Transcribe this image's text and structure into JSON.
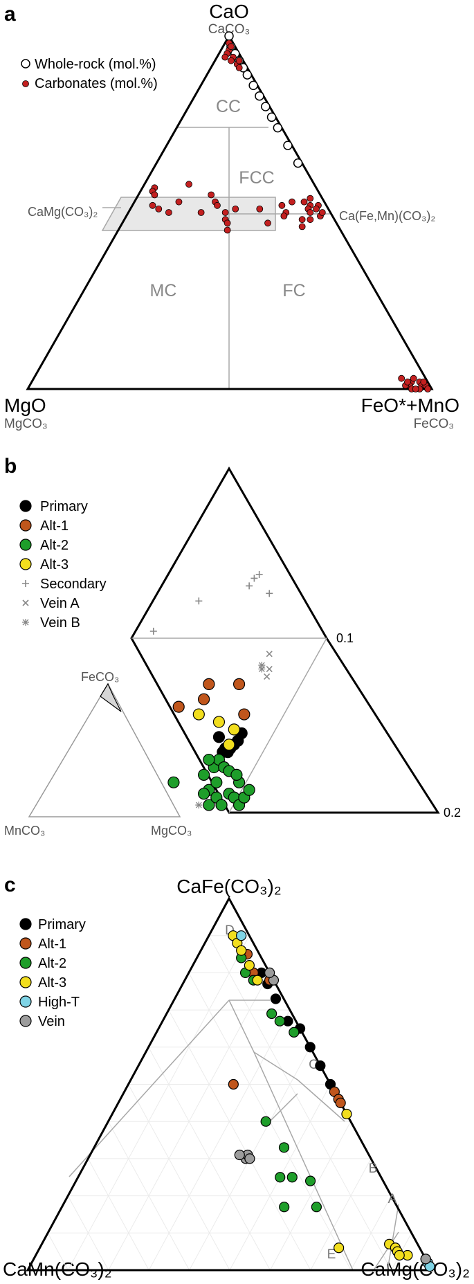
{
  "panel_a": {
    "label": "a",
    "apex_top": "CaO",
    "apex_top_sub": "CaCO₃",
    "apex_left": "MgO",
    "apex_left_sub": "MgCO₃",
    "apex_right": "FeO*+MnO",
    "apex_right_sub": "FeCO₃",
    "legend": [
      "Whole-rock (mol.%)",
      "Carbonates (mol.%)"
    ],
    "fields": [
      "CC",
      "FCC",
      "MC",
      "FC"
    ],
    "mid_left": "CaMg(CO₃)₂",
    "mid_right": "Ca(Fe,Mn)(CO₃)₂"
  },
  "panel_b": {
    "label": "b",
    "legend": [
      "Primary",
      "Alt-1",
      "Alt-2",
      "Alt-3",
      "Secondary",
      "Vein A",
      "Vein B"
    ],
    "tick_01": "0.1",
    "tick_02": "0.2",
    "inset_top": "FeCO₃",
    "inset_left": "MnCO₃",
    "inset_right": "MgCO₃"
  },
  "panel_c": {
    "label": "c",
    "apex_top": "CaFe(CO₃)₂",
    "apex_left": "CaMn(CO₃)₂",
    "apex_right": "CaMg(CO₃)₂",
    "legend": [
      "Primary",
      "Alt-1",
      "Alt-2",
      "Alt-3",
      "High-T",
      "Vein"
    ],
    "zones": [
      "D",
      "C",
      "B",
      "A",
      "E"
    ]
  },
  "colors": {
    "primary": "#000000",
    "alt1": "#c0561c",
    "alt2": "#1e9e2a",
    "alt3": "#f2de1e",
    "hight": "#7fd4e6",
    "vein": "#9c9c9c",
    "carbonate": "#c32020",
    "secondary": "#888888"
  },
  "chart_data": [
    {
      "type": "scatter",
      "title": "",
      "ternary_apices": [
        "CaO",
        "MgO",
        "FeO*+MnO"
      ],
      "series": [
        {
          "name": "Whole-rock (mol.%)",
          "points": [
            [
              100,
              0,
              0
            ],
            [
              97,
              1,
              2
            ],
            [
              95,
              1,
              4
            ],
            [
              93,
              1,
              6
            ],
            [
              91,
              1,
              8
            ],
            [
              89,
              1,
              10
            ],
            [
              86,
              1,
              13
            ],
            [
              83,
              1,
              16
            ],
            [
              80,
              1,
              19
            ],
            [
              77,
              1,
              22
            ],
            [
              74,
              1,
              25
            ],
            [
              69,
              1,
              30
            ],
            [
              64,
              1,
              35
            ]
          ]
        },
        {
          "name": "Carbonates (mol.%)",
          "points": [
            [
              98,
              1,
              1
            ],
            [
              96,
              2,
              2
            ],
            [
              95,
              3,
              2
            ],
            [
              94,
              2,
              4
            ],
            [
              93,
              3,
              4
            ],
            [
              92,
              2,
              6
            ],
            [
              97,
              1,
              2
            ],
            [
              94,
              4,
              2
            ],
            [
              93,
              1,
              6
            ],
            [
              91,
              2,
              7
            ],
            [
              57,
              40,
              3
            ],
            [
              56,
              41,
              3
            ],
            [
              55,
              41,
              4
            ],
            [
              52,
              43,
              5
            ],
            [
              51,
              42,
              7
            ],
            [
              50,
              40,
              10
            ],
            [
              53,
              36,
              11
            ],
            [
              58,
              31,
              11
            ],
            [
              55,
              27,
              18
            ],
            [
              53,
              27,
              20
            ],
            [
              50,
              32,
              18
            ],
            [
              48,
              27,
              25
            ],
            [
              50,
              26,
              24
            ],
            [
              52,
              27,
              21
            ],
            [
              51,
              23,
              26
            ],
            [
              47,
              27,
              26
            ],
            [
              45,
              28,
              27
            ],
            [
              51,
              17,
              32
            ],
            [
              50,
              11,
              39
            ],
            [
              47,
              17,
              36
            ],
            [
              46,
              9,
              45
            ],
            [
              52,
              11,
              37
            ],
            [
              49,
              12,
              39
            ],
            [
              48,
              8,
              44
            ],
            [
              53,
              8,
              39
            ],
            [
              52,
              4,
              44
            ],
            [
              51,
              5,
              44
            ],
            [
              50,
              5,
              45
            ],
            [
              49,
              3,
              48
            ],
            [
              50,
              2,
              48
            ],
            [
              53,
              5,
              42
            ],
            [
              54,
              3,
              43
            ],
            [
              48,
              6,
              46
            ],
            [
              52,
              2,
              46
            ],
            [
              51,
              3,
              46
            ],
            [
              3,
              6,
              91
            ],
            [
              2,
              4,
              94
            ],
            [
              1,
              5,
              94
            ],
            [
              2,
              2,
              96
            ],
            [
              0,
              5,
              95
            ],
            [
              1,
              2,
              97
            ],
            [
              0,
              3,
              97
            ],
            [
              1,
              1,
              98
            ],
            [
              2,
              1,
              97
            ],
            [
              0,
              4,
              96
            ],
            [
              3,
              3,
              94
            ],
            [
              1,
              6,
              93
            ],
            [
              2,
              5,
              93
            ],
            [
              0,
              1,
              99
            ]
          ]
        }
      ]
    },
    {
      "type": "scatter",
      "title": "",
      "axis_ticks": [
        "0.1",
        "0.2"
      ],
      "series": [
        {
          "name": "Primary",
          "points": [
            [
              -0.04,
              0.2
            ],
            [
              -0.025,
              0.16
            ],
            [
              -0.015,
              0.17
            ],
            [
              -0.005,
              0.16
            ],
            [
              0.005,
              0.17
            ],
            [
              0.02,
              0.18
            ],
            [
              0.035,
              0.19
            ],
            [
              0.05,
              0.21
            ]
          ]
        },
        {
          "name": "Alt-1",
          "points": [
            [
              -0.2,
              0.28
            ],
            [
              -0.08,
              0.34
            ],
            [
              -0.1,
              0.3
            ],
            [
              0.04,
              0.34
            ],
            [
              0.06,
              0.26
            ]
          ]
        },
        {
          "name": "Alt-2",
          "points": [
            [
              -0.22,
              0.08
            ],
            [
              -0.1,
              0.1
            ],
            [
              -0.08,
              0.06
            ],
            [
              -0.05,
              0.08
            ],
            [
              -0.1,
              0.05
            ],
            [
              -0.08,
              0.02
            ],
            [
              -0.05,
              0.04
            ],
            [
              -0.03,
              0.02
            ],
            [
              0.0,
              0.05
            ],
            [
              0.02,
              0.04
            ],
            [
              0.04,
              0.02
            ],
            [
              -0.06,
              0.12
            ],
            [
              -0.04,
              0.14
            ],
            [
              -0.02,
              0.12
            ],
            [
              0.04,
              0.08
            ],
            [
              0.06,
              0.04
            ],
            [
              -0.08,
              0.14
            ],
            [
              0.0,
              0.11
            ],
            [
              0.03,
              0.1
            ],
            [
              0.08,
              0.06
            ]
          ]
        },
        {
          "name": "Alt-3",
          "points": [
            [
              -0.12,
              0.26
            ],
            [
              -0.04,
              0.24
            ],
            [
              0.02,
              0.22
            ],
            [
              0.0,
              0.18
            ]
          ]
        },
        {
          "name": "Secondary",
          "points": [
            [
              -0.3,
              0.48
            ],
            [
              -0.12,
              0.56
            ],
            [
              0.1,
              0.62
            ],
            [
              0.12,
              0.63
            ],
            [
              0.08,
              0.6
            ],
            [
              0.16,
              0.58
            ]
          ]
        },
        {
          "name": "Vein A",
          "points": [
            [
              0.16,
              0.42
            ],
            [
              0.16,
              0.38
            ],
            [
              0.15,
              0.36
            ]
          ]
        },
        {
          "name": "Vein B",
          "points": [
            [
              0.13,
              0.39
            ],
            [
              0.13,
              0.38
            ],
            [
              -0.12,
              0.02
            ]
          ]
        }
      ]
    },
    {
      "type": "scatter",
      "title": "",
      "ternary_apices": [
        "CaFe(CO₃)₂",
        "CaMn(CO₃)₂",
        "CaMg(CO₃)₂"
      ],
      "series": [
        {
          "name": "Primary",
          "points": [
            [
              0.8,
              0.02,
              0.18
            ],
            [
              0.77,
              0.02,
              0.21
            ],
            [
              0.73,
              0.02,
              0.25
            ],
            [
              0.67,
              0.02,
              0.31
            ],
            [
              0.65,
              0.0,
              0.35
            ],
            [
              0.6,
              0.0,
              0.4
            ],
            [
              0.55,
              0.0,
              0.45
            ],
            [
              0.5,
              0.0,
              0.5
            ],
            [
              0.02,
              0.0,
              0.98
            ],
            [
              0.01,
              0.0,
              0.99
            ],
            [
              0.03,
              0.0,
              0.97
            ]
          ]
        },
        {
          "name": "Alt-1",
          "points": [
            [
              0.85,
              0.03,
              0.12
            ],
            [
              0.8,
              0.04,
              0.16
            ],
            [
              0.78,
              0.01,
              0.21
            ],
            [
              0.5,
              0.24,
              0.26
            ],
            [
              0.48,
              0.0,
              0.52
            ],
            [
              0.46,
              0.0,
              0.54
            ],
            [
              0.45,
              0.0,
              0.55
            ]
          ]
        },
        {
          "name": "Alt-2",
          "points": [
            [
              0.84,
              0.05,
              0.11
            ],
            [
              0.8,
              0.06,
              0.14
            ],
            [
              0.78,
              0.05,
              0.17
            ],
            [
              0.69,
              0.05,
              0.26
            ],
            [
              0.67,
              0.04,
              0.29
            ],
            [
              0.64,
              0.02,
              0.34
            ],
            [
              0.4,
              0.21,
              0.39
            ],
            [
              0.33,
              0.2,
              0.47
            ],
            [
              0.25,
              0.25,
              0.5
            ],
            [
              0.25,
              0.22,
              0.53
            ],
            [
              0.24,
              0.18,
              0.58
            ],
            [
              0.17,
              0.28,
              0.55
            ],
            [
              0.17,
              0.2,
              0.63
            ]
          ]
        },
        {
          "name": "Alt-3",
          "points": [
            [
              0.9,
              0.04,
              0.06
            ],
            [
              0.88,
              0.04,
              0.08
            ],
            [
              0.86,
              0.04,
              0.1
            ],
            [
              0.82,
              0.04,
              0.14
            ],
            [
              0.78,
              0.04,
              0.18
            ],
            [
              0.06,
              0.2,
              0.74
            ],
            [
              0.42,
              0.0,
              0.58
            ],
            [
              0.07,
              0.07,
              0.86
            ],
            [
              0.06,
              0.06,
              0.88
            ],
            [
              0.05,
              0.06,
              0.89
            ],
            [
              0.04,
              0.04,
              0.92
            ],
            [
              0.04,
              0.06,
              0.9
            ]
          ]
        },
        {
          "name": "High-T",
          "points": [
            [
              0.9,
              0.02,
              0.08
            ],
            [
              0.02,
              0.0,
              0.98
            ],
            [
              0.01,
              0.0,
              0.99
            ]
          ]
        },
        {
          "name": "Vein",
          "points": [
            [
              0.78,
              0.0,
              0.22
            ],
            [
              0.8,
              0.0,
              0.2
            ],
            [
              0.3,
              0.31,
              0.39
            ],
            [
              0.31,
              0.3,
              0.39
            ],
            [
              0.31,
              0.32,
              0.37
            ],
            [
              0.3,
              0.3,
              0.4
            ],
            [
              0.03,
              0.0,
              0.97
            ]
          ]
        }
      ]
    }
  ]
}
